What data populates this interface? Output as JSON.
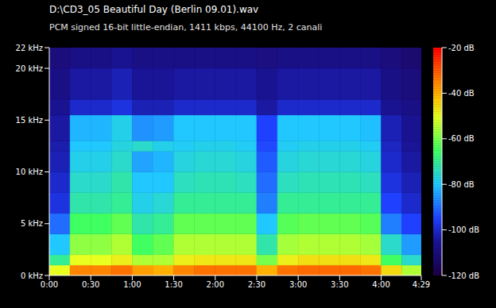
{
  "chart_data": {
    "type": "heatmap",
    "title": "D:\\CD3_05 Beautiful Day (Berlin 09.01).wav",
    "subtitle": "PCM signed 16-bit little-endian, 1411 kbps, 44100 Hz, 2 canali",
    "xlim": [
      0,
      269
    ],
    "xticks": [
      {
        "value": 0,
        "label": "0:00"
      },
      {
        "value": 30,
        "label": "0:30"
      },
      {
        "value": 60,
        "label": "1:00"
      },
      {
        "value": 90,
        "label": "1:30"
      },
      {
        "value": 120,
        "label": "2:00"
      },
      {
        "value": 150,
        "label": "2:30"
      },
      {
        "value": 180,
        "label": "3:00"
      },
      {
        "value": 210,
        "label": "3:30"
      },
      {
        "value": 240,
        "label": "4:00"
      },
      {
        "value": 269,
        "label": "4:29"
      }
    ],
    "ylim": [
      0,
      22
    ],
    "yticks": [
      {
        "value": 0,
        "label": "0 kHz"
      },
      {
        "value": 5,
        "label": "5 kHz"
      },
      {
        "value": 10,
        "label": "10 kHz"
      },
      {
        "value": 15,
        "label": "15 kHz"
      },
      {
        "value": 20,
        "label": "20 kHz"
      },
      {
        "value": 22,
        "label": "22 kHz"
      }
    ],
    "x_bins": [
      0,
      15,
      30,
      45,
      60,
      75,
      90,
      105,
      120,
      135,
      150,
      165,
      180,
      195,
      210,
      225,
      240,
      255,
      269
    ],
    "y_bins": [
      0,
      1,
      2,
      4,
      6,
      8,
      10,
      12,
      13,
      15.5,
      17,
      20,
      22
    ],
    "values": [
      [
        -50,
        -35,
        -35,
        -33,
        -38,
        -40,
        -35,
        -33,
        -33,
        -33,
        -40,
        -33,
        -32,
        -32,
        -32,
        -33,
        -45,
        -55
      ],
      [
        -70,
        -50,
        -50,
        -48,
        -55,
        -55,
        -48,
        -47,
        -47,
        -47,
        -60,
        -48,
        -46,
        -46,
        -46,
        -47,
        -65,
        -75
      ],
      [
        -80,
        -58,
        -58,
        -55,
        -65,
        -62,
        -55,
        -55,
        -55,
        -55,
        -72,
        -56,
        -55,
        -55,
        -55,
        -56,
        -75,
        -85
      ],
      [
        -90,
        -65,
        -65,
        -62,
        -72,
        -70,
        -62,
        -62,
        -62,
        -62,
        -80,
        -63,
        -62,
        -62,
        -62,
        -63,
        -88,
        -95
      ],
      [
        -98,
        -72,
        -72,
        -70,
        -78,
        -76,
        -70,
        -70,
        -70,
        -70,
        -88,
        -70,
        -70,
        -70,
        -70,
        -70,
        -95,
        -100
      ],
      [
        -100,
        -75,
        -75,
        -72,
        -80,
        -80,
        -74,
        -73,
        -73,
        -74,
        -90,
        -74,
        -73,
        -73,
        -73,
        -74,
        -98,
        -102
      ],
      [
        -102,
        -78,
        -78,
        -75,
        -84,
        -82,
        -77,
        -76,
        -76,
        -77,
        -92,
        -77,
        -76,
        -76,
        -76,
        -77,
        -100,
        -104
      ],
      [
        -103,
        -80,
        -80,
        -77,
        -75,
        -78,
        -79,
        -78,
        -78,
        -79,
        -94,
        -79,
        -78,
        -78,
        -78,
        -79,
        -101,
        -105
      ],
      [
        -104,
        -82,
        -82,
        -78,
        -86,
        -85,
        -80,
        -80,
        -80,
        -80,
        -95,
        -80,
        -80,
        -80,
        -80,
        -81,
        -102,
        -106
      ],
      [
        -106,
        -100,
        -100,
        -98,
        -102,
        -102,
        -100,
        -100,
        -100,
        -100,
        -104,
        -100,
        -100,
        -100,
        -100,
        -100,
        -106,
        -108
      ],
      [
        -108,
        -104,
        -104,
        -102,
        -105,
        -105,
        -104,
        -104,
        -104,
        -104,
        -106,
        -104,
        -104,
        -104,
        -104,
        -104,
        -108,
        -110
      ],
      [
        -110,
        -108,
        -108,
        -106,
        -108,
        -108,
        -108,
        -108,
        -108,
        -108,
        -109,
        -108,
        -108,
        -108,
        -108,
        -108,
        -110,
        -112
      ]
    ],
    "colorbar": {
      "range": [
        -120,
        -20
      ],
      "ticks": [
        {
          "value": -20,
          "label": "-20 dB"
        },
        {
          "value": -40,
          "label": "-40 dB"
        },
        {
          "value": -60,
          "label": "-60 dB"
        },
        {
          "value": -80,
          "label": "-80 dB"
        },
        {
          "value": -100,
          "label": "-100 dB"
        },
        {
          "value": -120,
          "label": "-120 dB"
        }
      ]
    }
  }
}
